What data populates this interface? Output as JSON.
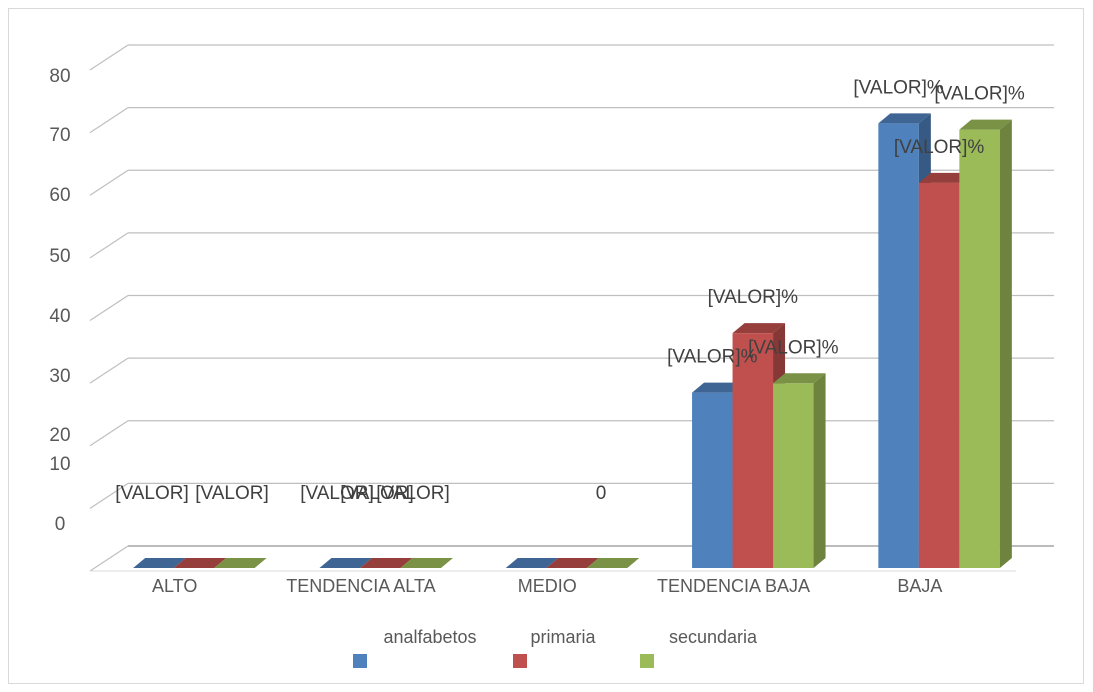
{
  "chart_data": {
    "type": "bar",
    "categories": [
      "ALTO",
      "TENDENCIA ALTA",
      "MEDIO",
      "TENDENCIA BAJA",
      "BAJA"
    ],
    "series": [
      {
        "name": "analfabetos",
        "color": "#4f81bd",
        "values": [
          0,
          0,
          0,
          28,
          71
        ]
      },
      {
        "name": "primaria",
        "color": "#c0504d",
        "values": [
          0,
          0,
          0,
          37.5,
          61.5
        ]
      },
      {
        "name": "secundaria",
        "color": "#9bbb59",
        "values": [
          0,
          0,
          0,
          29.5,
          70
        ]
      }
    ],
    "data_labels": [
      [
        "[VALOR]",
        "[VALOR]",
        "",
        "[VALOR]%",
        "[VALOR]%"
      ],
      [
        "[VALOR]",
        "[VALOR]",
        "[VALOR]",
        "[VALOR]%",
        "[VALOR]%"
      ],
      [
        "",
        "0",
        "",
        "[VALOR]%",
        "[VALOR]%"
      ]
    ],
    "y_tick_labels": [
      "0",
      "10",
      "20",
      "30",
      "40",
      "50",
      "60",
      "70",
      "80"
    ],
    "ylim": [
      0,
      80
    ],
    "grid": true,
    "legend_position": "bottom",
    "title": "",
    "xlabel": "",
    "ylabel": ""
  }
}
